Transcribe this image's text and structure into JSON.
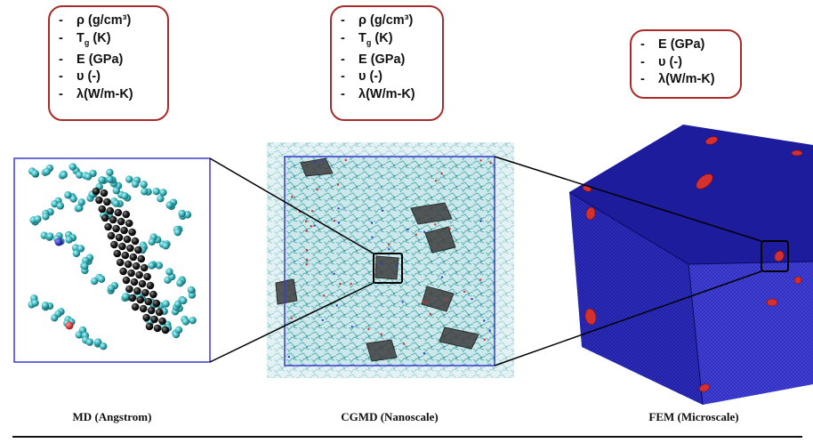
{
  "boxes": {
    "md": [
      "ρ (g/cm³)",
      "T_g (K)",
      "E (GPa)",
      "υ (-)",
      "λ(W/m-K)"
    ],
    "cgmd": [
      "ρ (g/cm³)",
      "T_g (K)",
      "E (GPa)",
      "υ (-)",
      "λ(W/m-K)"
    ],
    "fem": [
      "E (GPa)",
      "υ (-)",
      "λ(W/m-K)"
    ]
  },
  "captions": {
    "md": "MD (Angstrom)",
    "cgmd": "CGMD (Nanoscale)",
    "fem": "FEM (Microscale)"
  },
  "colors": {
    "box_border": "#a82a2a",
    "frame_border": "#3a3ad0",
    "polymer_bead": "#3cb8bf",
    "filler_bead": "#111111",
    "cube_face": "#1c1c9c",
    "inclusion": "#d43030"
  }
}
